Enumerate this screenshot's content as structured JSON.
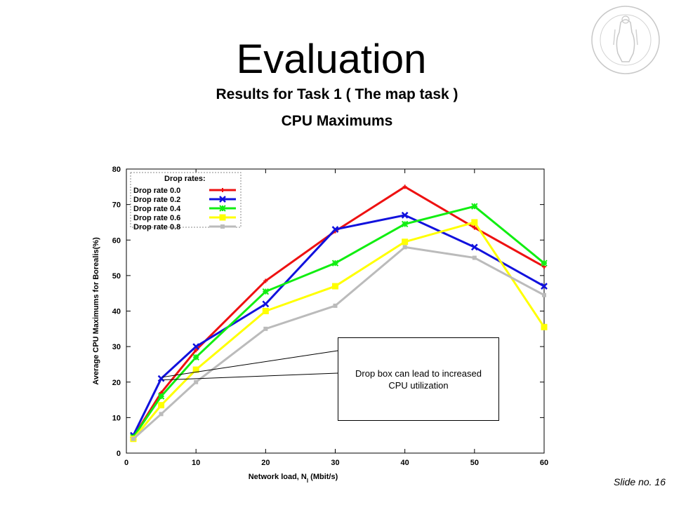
{
  "slide": {
    "title": "Evaluation",
    "subtitle_line1": "Results for Task 1 ( The map task )",
    "subtitle_line2": "CPU Maximums",
    "slide_number": "Slide no. 16"
  },
  "callout": {
    "line1": "Drop box can lead to increased",
    "line2": "CPU utilization"
  },
  "chart_data": {
    "type": "line",
    "x": [
      1,
      5,
      10,
      20,
      30,
      40,
      50,
      60
    ],
    "xlabel_main": "Network load, N",
    "xlabel_sub": "l",
    "xlabel_unit": " (Mbit/s)",
    "ylabel": "Average CPU Maximums for Borealis(%)",
    "xlim": [
      0,
      60
    ],
    "ylim": [
      0,
      80
    ],
    "xticks": [
      0,
      10,
      20,
      30,
      40,
      50,
      60
    ],
    "yticks": [
      0,
      10,
      20,
      30,
      40,
      50,
      60,
      70,
      80
    ],
    "legend_title": "Drop rates:",
    "legend_position": "top-left",
    "grid": false,
    "series": [
      {
        "name": "Drop rate 0.0",
        "color": "#ee1111",
        "marker": "plus",
        "values": [
          4.5,
          17,
          29,
          48.5,
          62.5,
          75,
          63.5,
          52.5
        ]
      },
      {
        "name": "Drop rate 0.2",
        "color": "#1111dd",
        "marker": "cross",
        "values": [
          5,
          21,
          30,
          42,
          63,
          67,
          58,
          47
        ]
      },
      {
        "name": "Drop rate 0.4",
        "color": "#11ee11",
        "marker": "star",
        "values": [
          4.5,
          16,
          27,
          45.5,
          53.5,
          64.5,
          69.5,
          53.5
        ]
      },
      {
        "name": "Drop rate 0.6",
        "color": "#ffff00",
        "marker": "square",
        "values": [
          4,
          13.5,
          23.5,
          40,
          47,
          59.5,
          65,
          35.5
        ]
      },
      {
        "name": "Drop rate 0.8",
        "color": "#bbbbbb",
        "marker": "square-small",
        "values": [
          4,
          11,
          20,
          35,
          41.5,
          58,
          55,
          44.5
        ]
      }
    ]
  },
  "icons": {
    "seal": "university-seal-icon"
  }
}
